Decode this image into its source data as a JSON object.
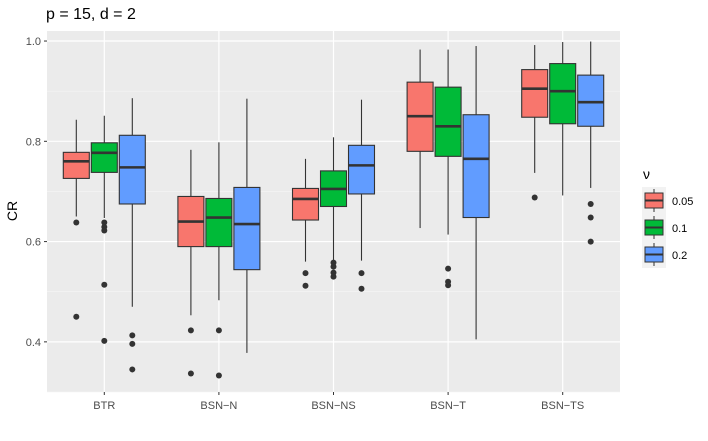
{
  "chart_data": {
    "type": "boxplot",
    "title": "p = 15, d = 2",
    "xlabel": "",
    "ylabel": "CR",
    "ylim": [
      0.3,
      1.02
    ],
    "yticks": [
      0.4,
      0.6,
      0.8,
      1.0
    ],
    "ytick_labels": [
      "0.4",
      "0.6",
      "0.8",
      "1.0"
    ],
    "categories": [
      "BTR",
      "BSN−N",
      "BSN−NS",
      "BSN−T",
      "BSN−TS"
    ],
    "legend": {
      "title": "ν",
      "position": "right",
      "entries": [
        {
          "label": "0.05",
          "color": "#F8766D"
        },
        {
          "label": "0.1",
          "color": "#00BA38"
        },
        {
          "label": "0.2",
          "color": "#619CFF"
        }
      ]
    },
    "series": [
      {
        "name": "0.05",
        "color": "#F8766D",
        "boxes": [
          {
            "whisker_low": 0.65,
            "q1": 0.726,
            "median": 0.76,
            "q3": 0.778,
            "whisker_high": 0.843,
            "outliers": [
              0.638,
              0.45
            ]
          },
          {
            "whisker_low": 0.453,
            "q1": 0.59,
            "median": 0.64,
            "q3": 0.69,
            "whisker_high": 0.783,
            "outliers": [
              0.423,
              0.337
            ]
          },
          {
            "whisker_low": 0.56,
            "q1": 0.643,
            "median": 0.685,
            "q3": 0.706,
            "whisker_high": 0.765,
            "outliers": [
              0.537,
              0.512
            ]
          },
          {
            "whisker_low": 0.627,
            "q1": 0.78,
            "median": 0.85,
            "q3": 0.918,
            "whisker_high": 0.983,
            "outliers": []
          },
          {
            "whisker_low": 0.737,
            "q1": 0.848,
            "median": 0.905,
            "q3": 0.943,
            "whisker_high": 0.992,
            "outliers": [
              0.688
            ]
          }
        ]
      },
      {
        "name": "0.1",
        "color": "#00BA38",
        "boxes": [
          {
            "whisker_low": 0.647,
            "q1": 0.738,
            "median": 0.777,
            "q3": 0.797,
            "whisker_high": 0.851,
            "outliers": [
              0.638,
              0.629,
              0.622,
              0.514,
              0.402
            ]
          },
          {
            "whisker_low": 0.483,
            "q1": 0.59,
            "median": 0.648,
            "q3": 0.686,
            "whisker_high": 0.798,
            "outliers": [
              0.423,
              0.333
            ]
          },
          {
            "whisker_low": 0.563,
            "q1": 0.67,
            "median": 0.705,
            "q3": 0.741,
            "whisker_high": 0.808,
            "outliers": [
              0.558,
              0.55,
              0.538,
              0.53
            ]
          },
          {
            "whisker_low": 0.614,
            "q1": 0.77,
            "median": 0.83,
            "q3": 0.908,
            "whisker_high": 0.983,
            "outliers": [
              0.546,
              0.52,
              0.513
            ]
          },
          {
            "whisker_low": 0.692,
            "q1": 0.835,
            "median": 0.9,
            "q3": 0.955,
            "whisker_high": 0.998,
            "outliers": []
          }
        ]
      },
      {
        "name": "0.2",
        "color": "#619CFF",
        "boxes": [
          {
            "whisker_low": 0.47,
            "q1": 0.675,
            "median": 0.748,
            "q3": 0.812,
            "whisker_high": 0.886,
            "outliers": [
              0.413,
              0.396,
              0.345
            ]
          },
          {
            "whisker_low": 0.378,
            "q1": 0.544,
            "median": 0.635,
            "q3": 0.708,
            "whisker_high": 0.885,
            "outliers": []
          },
          {
            "whisker_low": 0.562,
            "q1": 0.695,
            "median": 0.752,
            "q3": 0.792,
            "whisker_high": 0.883,
            "outliers": [
              0.537,
              0.506
            ]
          },
          {
            "whisker_low": 0.405,
            "q1": 0.648,
            "median": 0.765,
            "q3": 0.853,
            "whisker_high": 0.99,
            "outliers": []
          },
          {
            "whisker_low": 0.707,
            "q1": 0.83,
            "median": 0.878,
            "q3": 0.932,
            "whisker_high": 0.999,
            "outliers": [
              0.675,
              0.648,
              0.6
            ]
          }
        ]
      }
    ]
  }
}
